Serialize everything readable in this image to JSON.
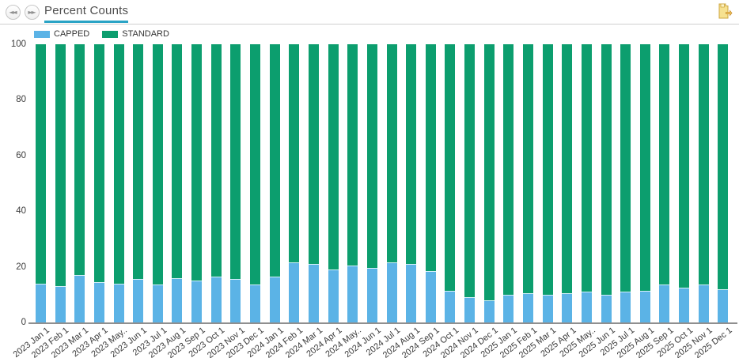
{
  "header": {
    "prev_icon": "double-chevron-left",
    "next_icon": "double-chevron-right",
    "prev_glyph": "◄◄",
    "next_glyph": "►►",
    "export_icon": "folder-export"
  },
  "chart_data": {
    "type": "bar",
    "stacked": true,
    "title": "Percent Counts",
    "xlabel": "",
    "ylabel": "",
    "ylim": [
      0,
      100
    ],
    "yticks": [
      0,
      20,
      40,
      60,
      80,
      100
    ],
    "grid": false,
    "legend_position": "top-left",
    "categories": [
      "2023 Jan 1",
      "2023 Feb 1",
      "2023 Mar 1",
      "2023 Apr 1",
      "2023 May..",
      "2023 Jun 1",
      "2023 Jul 1",
      "2023 Aug 1",
      "2023 Sep 1",
      "2023 Oct 1",
      "2023 Nov 1",
      "2023 Dec 1",
      "2024 Jan 1",
      "2024 Feb 1",
      "2024 Mar 1",
      "2024 Apr 1",
      "2024 May..",
      "2024 Jun 1",
      "2024 Jul 1",
      "2024 Aug 1",
      "2024 Sep 1",
      "2024 Oct 1",
      "2024 Nov 1",
      "2024 Dec 1",
      "2025 Jan 1",
      "2025 Feb 1",
      "2025 Mar 1",
      "2025 Apr 1",
      "2025 May..",
      "2025 Jun 1",
      "2025 Jul 1",
      "2025 Aug 1",
      "2025 Sep 1",
      "2025 Oct 1",
      "2025 Nov 1",
      "2025 Dec 1"
    ],
    "series": [
      {
        "name": "CAPPED",
        "color": "#5bb3e6",
        "values": [
          14,
          13,
          17,
          14.5,
          14,
          15.5,
          13.5,
          16,
          15,
          16.5,
          15.5,
          13.5,
          16.5,
          21.5,
          21,
          19,
          20.5,
          19.5,
          21.5,
          21,
          18.5,
          11.5,
          9,
          8,
          10,
          10.5,
          10,
          10.5,
          11,
          10,
          11,
          11.5,
          13.5,
          12.5,
          13.5,
          12
        ]
      },
      {
        "name": "STANDARD",
        "color": "#0c9e6e",
        "values": [
          86,
          87,
          83,
          85.5,
          86,
          84.5,
          86.5,
          84,
          85,
          83.5,
          84.5,
          86.5,
          83.5,
          78.5,
          79,
          81,
          79.5,
          80.5,
          78.5,
          79,
          81.5,
          88.5,
          91,
          92,
          90,
          89.5,
          90,
          89.5,
          89,
          90,
          89,
          88.5,
          86.5,
          87.5,
          86.5,
          88
        ]
      }
    ]
  },
  "colors": {
    "title_underline": "#2aa3c5",
    "axis_line": "#8f8f8f",
    "capped": "#5bb3e6",
    "standard": "#0c9e6e",
    "folder_icon": "#f6e190"
  }
}
